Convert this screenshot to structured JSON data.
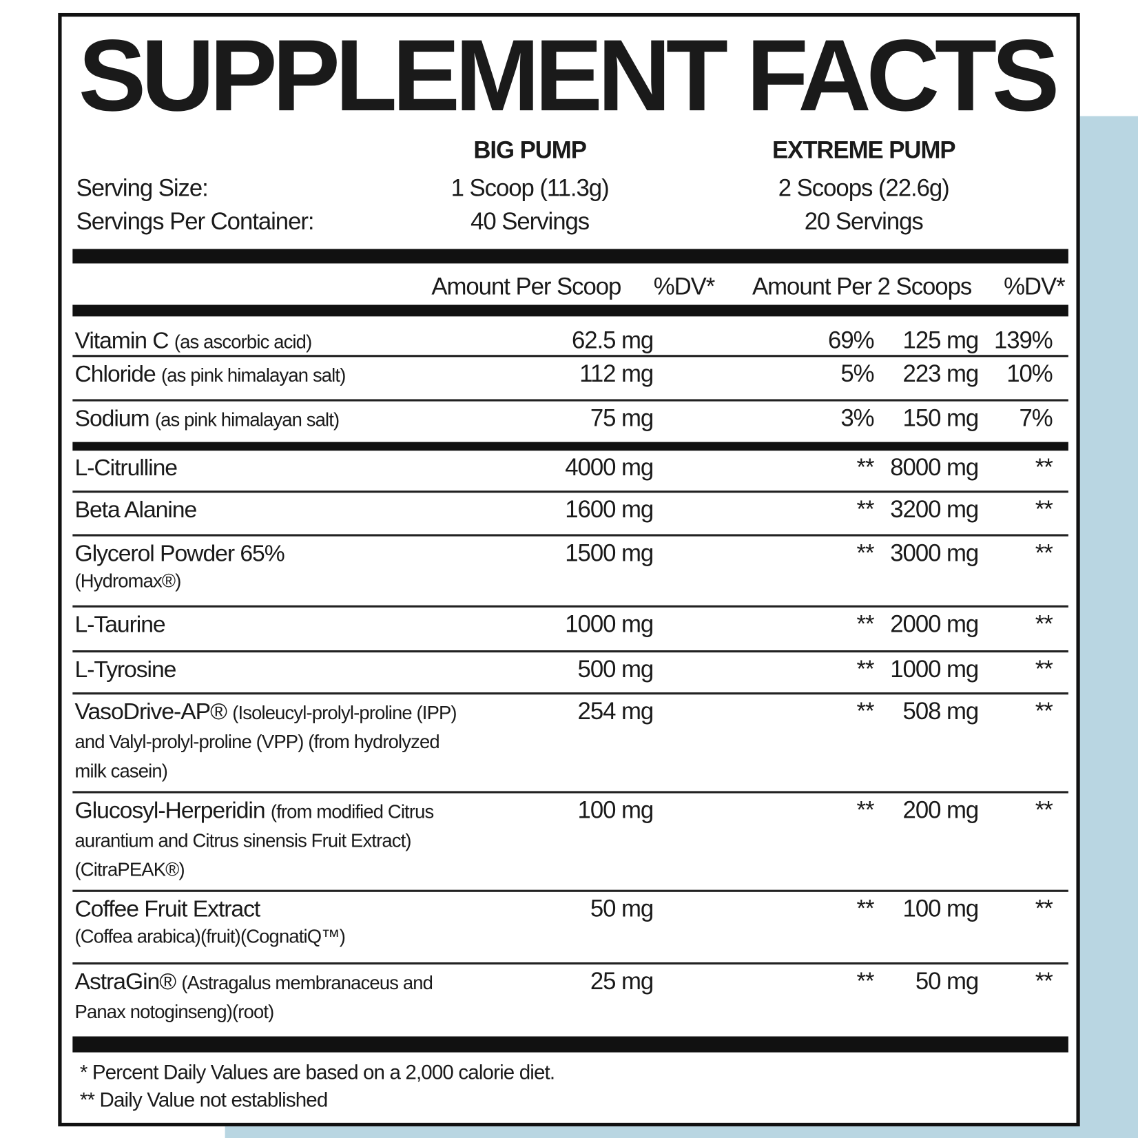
{
  "title": "SUPPLEMENT FACTS",
  "serving_size_label": "Serving Size:",
  "servings_per_container_label": "Servings Per Container:",
  "products": [
    {
      "name": "BIG PUMP",
      "serving_size": "1 Scoop (11.3g)",
      "servings_per_container": "40 Servings"
    },
    {
      "name": "EXTREME PUMP",
      "serving_size": "2 Scoops (22.6g)",
      "servings_per_container": "20 Servings"
    }
  ],
  "columns": [
    "Amount Per Scoop",
    "%DV*",
    "Amount Per 2 Scoops",
    "%DV*"
  ],
  "rows": [
    {
      "name": "Vitamin C",
      "detail": "(as ascorbic acid)",
      "amount_1": "62.5 mg",
      "dv_1": "69%",
      "amount_2": "125 mg",
      "dv_2": "139%"
    },
    {
      "name": "Chloride",
      "detail": "(as pink himalayan salt)",
      "amount_1": "112 mg",
      "dv_1": "5%",
      "amount_2": "223 mg",
      "dv_2": "10%"
    },
    {
      "name": "Sodium",
      "detail": "(as pink himalayan salt)",
      "amount_1": "75 mg",
      "dv_1": "3%",
      "amount_2": "150 mg",
      "dv_2": "7%"
    },
    {
      "name": "L-Citrulline",
      "amount_1": "4000 mg",
      "dv_1": "**",
      "amount_2": "8000 mg",
      "dv_2": "**"
    },
    {
      "name": "Beta Alanine",
      "amount_1": "1600 mg",
      "dv_1": "**",
      "amount_2": "3200 mg",
      "dv_2": "**"
    },
    {
      "name": "Glycerol Powder 65%",
      "detail": "(Hydromax®)",
      "amount_1": "1500 mg",
      "dv_1": "**",
      "amount_2": "3000 mg",
      "dv_2": "**"
    },
    {
      "name": "L-Taurine",
      "amount_1": "1000 mg",
      "dv_1": "**",
      "amount_2": "2000 mg",
      "dv_2": "**"
    },
    {
      "name": "L-Tyrosine",
      "amount_1": "500 mg",
      "dv_1": "**",
      "amount_2": "1000 mg",
      "dv_2": "**"
    },
    {
      "name": "VasoDrive-AP®",
      "detail": "(Isoleucyl-prolyl-proline (IPP) and Valyl-prolyl-proline (VPP) (from hydrolyzed milk casein)",
      "amount_1": "254 mg",
      "dv_1": "**",
      "amount_2": "508 mg",
      "dv_2": "**"
    },
    {
      "name": "Glucosyl-Herperidin",
      "detail": "(from modified Citrus aurantium and Citrus sinensis Fruit Extract) (CitraPEAK®)",
      "amount_1": "100 mg",
      "dv_1": "**",
      "amount_2": "200 mg",
      "dv_2": "**"
    },
    {
      "name": "Coffee Fruit Extract",
      "detail": "(Coffea arabica)(fruit)(CognatiQ™)",
      "amount_1": "50 mg",
      "dv_1": "**",
      "amount_2": "100 mg",
      "dv_2": "**"
    },
    {
      "name": "AstraGin®",
      "detail": "(Astragalus membranaceus and Panax notoginseng)(root)",
      "amount_1": "25 mg",
      "dv_1": "**",
      "amount_2": "50 mg",
      "dv_2": "**"
    }
  ],
  "footnotes": [
    "* Percent Daily Values are based on a 2,000 calorie diet.",
    "** Daily Value not established"
  ]
}
